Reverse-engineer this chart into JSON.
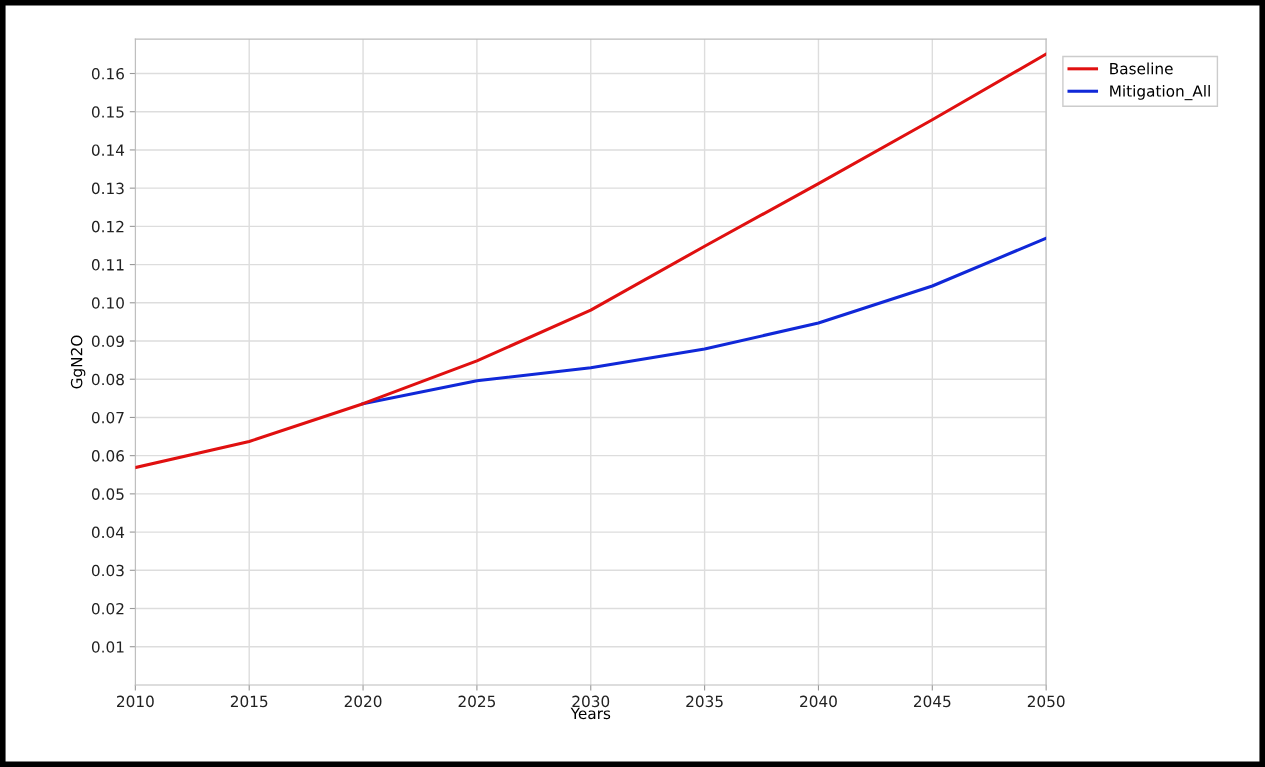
{
  "chart_data": {
    "type": "line",
    "xlabel": "Years",
    "ylabel": "GgN2O",
    "x": [
      2010,
      2015,
      2020,
      2025,
      2030,
      2035,
      2040,
      2045,
      2050
    ],
    "series": [
      {
        "name": "Baseline",
        "color": "#e01010",
        "values": [
          0.0569,
          0.0637,
          0.0736,
          0.0848,
          0.0981,
          0.1148,
          0.1312,
          0.1479,
          0.1651
        ]
      },
      {
        "name": "Mitigation_All",
        "color": "#1028d8",
        "values": [
          null,
          null,
          0.0736,
          0.0796,
          0.083,
          0.0879,
          0.0947,
          0.1044,
          0.1169
        ]
      }
    ],
    "xlim": [
      2010,
      2050
    ],
    "xticks": [
      2010,
      2015,
      2020,
      2025,
      2030,
      2035,
      2040,
      2045,
      2050
    ],
    "ylim": [
      0,
      0.169
    ],
    "yticks": [
      {
        "value": 0.01,
        "label": "0.01"
      },
      {
        "value": 0.02,
        "label": "0.02"
      },
      {
        "value": 0.03,
        "label": "0.03"
      },
      {
        "value": 0.04,
        "label": "0.04"
      },
      {
        "value": 0.05,
        "label": "0.05"
      },
      {
        "value": 0.06,
        "label": "0.06"
      },
      {
        "value": 0.07,
        "label": "0.07"
      },
      {
        "value": 0.08,
        "label": "0.08"
      },
      {
        "value": 0.09,
        "label": "0.09"
      },
      {
        "value": 0.1,
        "label": "0.10"
      },
      {
        "value": 0.11,
        "label": "0.11"
      },
      {
        "value": 0.12,
        "label": "0.12"
      },
      {
        "value": 0.13,
        "label": "0.13"
      },
      {
        "value": 0.14,
        "label": "0.14"
      },
      {
        "value": 0.15,
        "label": "0.15"
      },
      {
        "value": 0.16,
        "label": "0.16"
      }
    ],
    "grid": true,
    "legend": "top right",
    "marker": "none",
    "line_style": "solid"
  }
}
